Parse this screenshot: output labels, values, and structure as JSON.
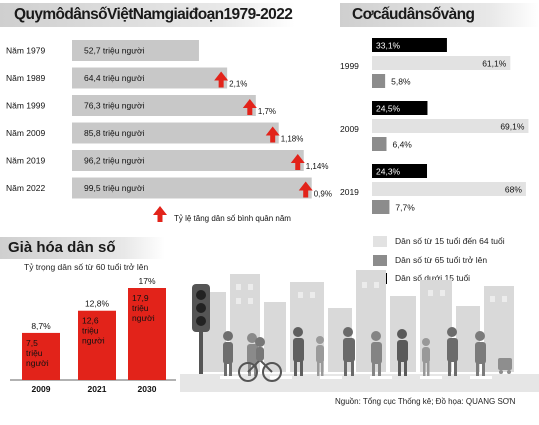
{
  "scale_panel": {
    "title": "QuymôdânsốViệtNamgiaiđoạn1979-2022",
    "growth_note": "Tỷ lệ tăng dân số bình quân năm"
  },
  "structure_panel": {
    "title": "Cơcấudânsốvàng"
  },
  "aging_panel": {
    "title": "Già hóa dân số",
    "subtitle": "Tỷ trọng dân số từ 60 tuổi trở lên"
  },
  "source": "Nguồn: Tổng cục Thống kê; Đồ họa: QUANG SƠN",
  "colors": {
    "bar_gray": "#c8c8c8",
    "arrow_red": "#e2231a",
    "aging_red": "#e2231a",
    "light_gray": "#e2e2e2",
    "mid_gray": "#8c8c8c",
    "black": "#000000"
  },
  "icons": [
    "up-arrow-icon",
    "traffic-light-icon",
    "crowd-silhouette-icon",
    "city-skyline-icon"
  ],
  "chart_data": [
    {
      "id": "population-scale",
      "type": "bar",
      "orientation": "horizontal",
      "categories": [
        "Năm 1979",
        "Năm 1989",
        "Năm 1999",
        "Năm 2009",
        "Năm 2019",
        "Năm 2022"
      ],
      "values": [
        52.7,
        64.4,
        76.3,
        85.8,
        96.2,
        99.5
      ],
      "value_labels": [
        "52,7 triệu người",
        "64,4 triệu người",
        "76,3 triệu người",
        "85,8 triệu người",
        "96,2 triệu người",
        "99,5 triệu người"
      ],
      "growth_rate": [
        null,
        2.1,
        1.7,
        1.18,
        1.14,
        0.9
      ],
      "growth_labels": [
        "",
        "2,1%",
        "1,7%",
        "1,18%",
        "1,14%",
        "0,9%"
      ],
      "title": "QuymôdânsốViệtNamgiaiđoạn1979-2022"
    },
    {
      "id": "population-structure",
      "type": "bar",
      "orientation": "horizontal",
      "categories": [
        "1999",
        "2009",
        "2019"
      ],
      "series": [
        {
          "name": "Dân số dưới 15 tuổi",
          "color": "#000000",
          "values": [
            33.1,
            24.5,
            24.3
          ],
          "labels": [
            "33,1%",
            "24,5%",
            "24,3%"
          ]
        },
        {
          "name": "Dân số từ 15 tuổi đến 64 tuổi",
          "color": "#e2e2e2",
          "values": [
            61.1,
            69.1,
            68
          ],
          "labels": [
            "61,1%",
            "69,1%",
            "68%"
          ]
        },
        {
          "name": "Dân số từ 65 tuổi trở lên",
          "color": "#8c8c8c",
          "values": [
            5.8,
            6.4,
            7.7
          ],
          "labels": [
            "5,8%",
            "6,4%",
            "7,7%"
          ]
        }
      ],
      "legend": [
        "Dân số từ 15 tuổi đến 64 tuổi",
        "Dân số từ 65 tuổi trở lên",
        "Dân số dưới 15 tuổi"
      ],
      "legend_placement": "bottom",
      "title": "Cơcấudânsốvàng"
    },
    {
      "id": "population-aging",
      "type": "bar",
      "categories": [
        "2009",
        "2021",
        "2030"
      ],
      "values": [
        8.7,
        12.8,
        17
      ],
      "value_labels": [
        "8,7%",
        "12,8%",
        "17%"
      ],
      "count_labels": [
        [
          "7,5",
          "triệu",
          "người"
        ],
        [
          "12,6",
          "triệu",
          "người"
        ],
        [
          "17,9",
          "triệu",
          "người"
        ]
      ],
      "title": "Già hóa dân số",
      "subtitle": "Tỷ trọng dân số từ 60 tuổi trở lên"
    }
  ]
}
